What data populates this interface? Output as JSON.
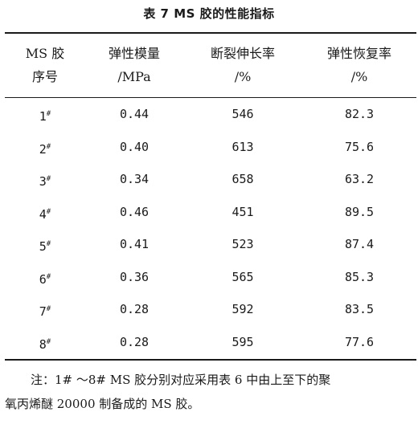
{
  "caption": "表 7   MS 胶的性能指标",
  "headers": [
    {
      "line1": "MS 胶",
      "line2": "序号"
    },
    {
      "line1": "弹性模量",
      "line2": "/MPa"
    },
    {
      "line1": "断裂伸长率",
      "line2": "/%"
    },
    {
      "line1": "弹性恢复率",
      "line2": "/%"
    }
  ],
  "rows": [
    {
      "id": "1",
      "mark": "#",
      "modulus": "0.44",
      "elongation": "546",
      "recovery": "82.3"
    },
    {
      "id": "2",
      "mark": "#",
      "modulus": "0.40",
      "elongation": "613",
      "recovery": "75.6"
    },
    {
      "id": "3",
      "mark": "#",
      "modulus": "0.34",
      "elongation": "658",
      "recovery": "63.2"
    },
    {
      "id": "4",
      "mark": "#",
      "modulus": "0.46",
      "elongation": "451",
      "recovery": "89.5"
    },
    {
      "id": "5",
      "mark": "#",
      "modulus": "0.41",
      "elongation": "523",
      "recovery": "87.4"
    },
    {
      "id": "6",
      "mark": "#",
      "modulus": "0.36",
      "elongation": "565",
      "recovery": "85.3"
    },
    {
      "id": "7",
      "mark": "#",
      "modulus": "0.28",
      "elongation": "592",
      "recovery": "83.5"
    },
    {
      "id": "8",
      "mark": "#",
      "modulus": "0.28",
      "elongation": "595",
      "recovery": "77.6"
    }
  ],
  "note": {
    "line1": "注：1# ～8# MS 胶分别对应采用表 6 中由上至下的聚",
    "line2": "氧丙烯醚 20000 制备成的 MS 胶。"
  }
}
